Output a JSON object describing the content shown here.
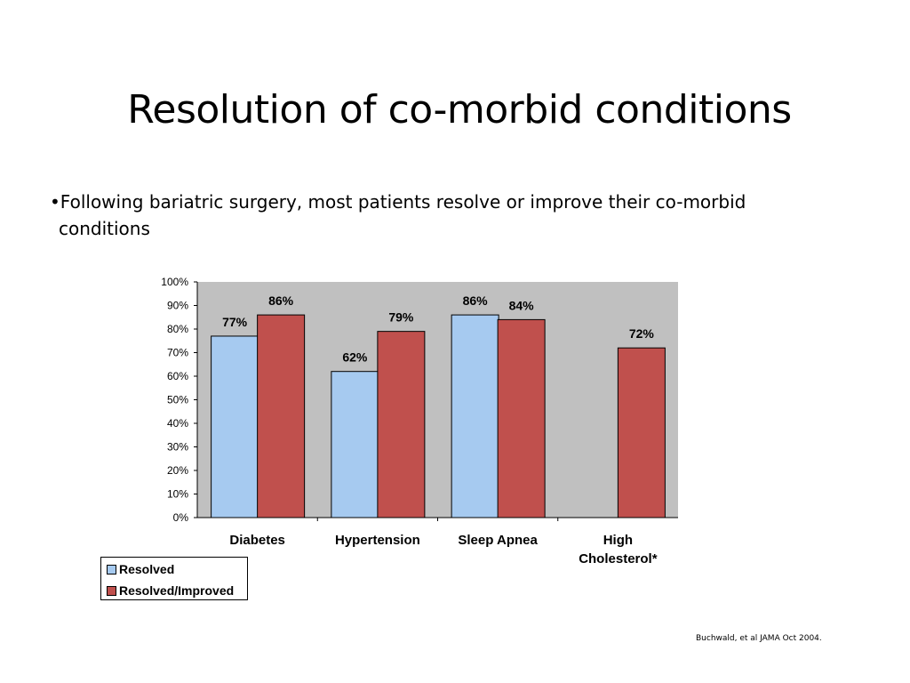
{
  "slide": {
    "title": "Resolution of co-morbid conditions",
    "bullet": "•Following bariatric surgery, most patients resolve or improve their co-morbid conditions",
    "source": "Buchwald, et al JAMA Oct 2004."
  },
  "chart_data": {
    "type": "bar",
    "categories": [
      "Diabetes",
      "Hypertension",
      "Sleep Apnea",
      "High Cholesterol*"
    ],
    "category_lines": [
      [
        "Diabetes"
      ],
      [
        "Hypertension"
      ],
      [
        "Sleep Apnea"
      ],
      [
        "High",
        "Cholesterol*"
      ]
    ],
    "series": [
      {
        "name": "Resolved",
        "values": [
          77,
          62,
          86,
          null
        ],
        "labels": [
          "77%",
          "62%",
          "86%",
          null
        ],
        "color": "#a6caf0"
      },
      {
        "name": "Resolved/Improved",
        "values": [
          86,
          79,
          84,
          72
        ],
        "labels": [
          "86%",
          "79%",
          "84%",
          "72%"
        ],
        "color": "#c0504d"
      }
    ],
    "ylim": [
      0,
      100
    ],
    "yticks": [
      "0%",
      "10%",
      "20%",
      "30%",
      "40%",
      "50%",
      "60%",
      "70%",
      "80%",
      "90%",
      "100%"
    ],
    "plot_background": "#c0c0c0",
    "legend_position": "bottom-left",
    "grid": false,
    "title": "",
    "xlabel": "",
    "ylabel": ""
  }
}
